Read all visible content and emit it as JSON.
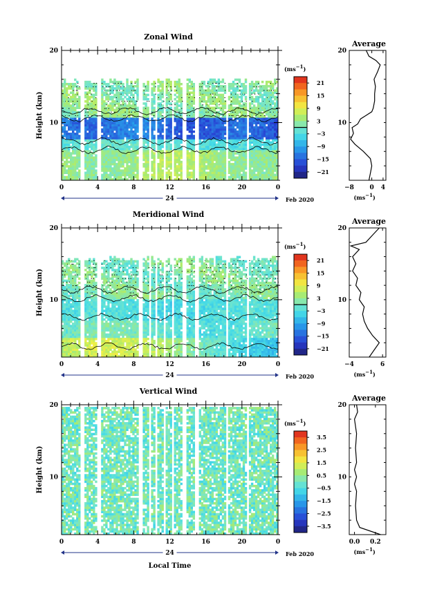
{
  "chart_data": [
    {
      "type": "heatmap",
      "title": "Zonal Wind",
      "ylabel": "Height (km)",
      "ylim": [
        2,
        20
      ],
      "yticks": [
        "10",
        "20"
      ],
      "xticks": [
        "0",
        "4",
        "8",
        "12",
        "16",
        "20",
        "0"
      ],
      "date_center": "24",
      "date_right": "Feb 2020",
      "colorbar": {
        "unit": "(ms",
        "unit_exp": "−1",
        "unit_close": ")",
        "ticks": [
          "21",
          "15",
          "9",
          "3",
          "−3",
          "−9",
          "−15",
          "−21"
        ],
        "range": [
          -24,
          24
        ]
      },
      "profile": {
        "title": "Average",
        "xlabel": "(ms",
        "xlabel_exp": "−1",
        "xlabel_close": ")",
        "xticks": [
          "−8",
          "0",
          "4"
        ],
        "xlim": [
          -8,
          5
        ],
        "yticks": [
          "10",
          "20"
        ],
        "points": [
          [
            -1,
            2
          ],
          [
            -0.5,
            3
          ],
          [
            0,
            4
          ],
          [
            -0.5,
            5
          ],
          [
            -3,
            6
          ],
          [
            -6,
            7
          ],
          [
            -7.5,
            7.7
          ],
          [
            -6.5,
            8.5
          ],
          [
            -7,
            9.3
          ],
          [
            -5,
            9.8
          ],
          [
            -4,
            10.5
          ],
          [
            -2,
            11
          ],
          [
            0,
            11.5
          ],
          [
            0.5,
            12
          ],
          [
            1,
            13
          ],
          [
            1,
            14
          ],
          [
            1.3,
            15
          ],
          [
            0.8,
            16
          ],
          [
            2,
            17
          ],
          [
            3,
            18
          ],
          [
            1.5,
            18.6
          ],
          [
            -1,
            19.2
          ],
          [
            -2,
            20
          ]
        ]
      }
    },
    {
      "type": "heatmap",
      "title": "Meridional Wind",
      "ylabel": "Height (km)",
      "ylim": [
        2,
        20
      ],
      "yticks": [
        "10",
        "20"
      ],
      "xticks": [
        "0",
        "4",
        "8",
        "12",
        "16",
        "20",
        "0"
      ],
      "date_center": "24",
      "date_right": "Feb 2020",
      "colorbar": {
        "unit": "(ms",
        "unit_exp": "−1",
        "unit_close": ")",
        "ticks": [
          "21",
          "15",
          "9",
          "3",
          "−3",
          "−9",
          "−15",
          "−21"
        ],
        "range": [
          -24,
          24
        ]
      },
      "profile": {
        "title": "Average",
        "xlabel": "(ms",
        "xlabel_exp": "−1",
        "xlabel_close": ")",
        "xticks": [
          "−4",
          "6"
        ],
        "xlim": [
          -4,
          7
        ],
        "yticks": [
          "10",
          "20"
        ],
        "points": [
          [
            2,
            2
          ],
          [
            3.5,
            3
          ],
          [
            5,
            4
          ],
          [
            3,
            5
          ],
          [
            1.5,
            6
          ],
          [
            0.5,
            7
          ],
          [
            0,
            8
          ],
          [
            0.5,
            9
          ],
          [
            -1,
            10
          ],
          [
            -0.5,
            11
          ],
          [
            -2,
            12
          ],
          [
            -1.5,
            13
          ],
          [
            -3,
            14
          ],
          [
            -2,
            15
          ],
          [
            -3,
            16
          ],
          [
            -1,
            17
          ],
          [
            -3.5,
            17.5
          ],
          [
            1,
            18
          ],
          [
            3,
            19
          ],
          [
            5,
            20
          ]
        ]
      }
    },
    {
      "type": "heatmap",
      "title": "Vertical Wind",
      "ylabel": "Height (km)",
      "xlabel": "Local Time",
      "ylim": [
        2,
        20
      ],
      "yticks": [
        "10",
        "20"
      ],
      "xticks": [
        "0",
        "4",
        "8",
        "12",
        "16",
        "20",
        "0"
      ],
      "date_center": "24",
      "date_right": "Feb 2020",
      "colorbar": {
        "unit": "(ms",
        "unit_exp": "−1",
        "unit_close": ")",
        "ticks": [
          "3.5",
          "2.5",
          "1.5",
          "0.5",
          "−0.5",
          "−1.5",
          "−2.5",
          "−3.5"
        ],
        "range": [
          -4,
          4
        ]
      },
      "profile": {
        "title": "Average",
        "xlabel": "(ms",
        "xlabel_exp": "−1",
        "xlabel_close": ")",
        "xticks": [
          "0.0",
          "0.2"
        ],
        "xlim": [
          -0.05,
          0.3
        ],
        "yticks": [
          "10",
          "20"
        ],
        "points": [
          [
            0.25,
            2
          ],
          [
            0.05,
            3
          ],
          [
            0.02,
            4
          ],
          [
            0.01,
            6
          ],
          [
            0.02,
            8
          ],
          [
            0,
            9
          ],
          [
            0.02,
            10
          ],
          [
            0,
            11
          ],
          [
            0.02,
            12
          ],
          [
            0.01,
            14
          ],
          [
            0.02,
            16
          ],
          [
            0,
            18
          ],
          [
            0.03,
            19
          ],
          [
            0.02,
            20
          ]
        ]
      }
    }
  ]
}
